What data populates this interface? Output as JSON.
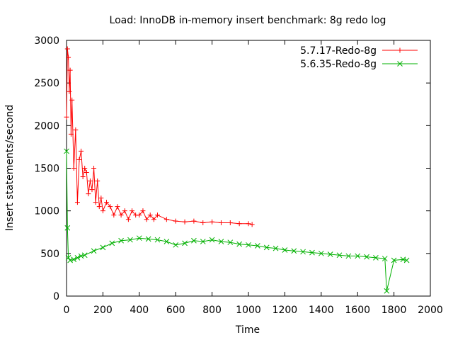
{
  "chart_data": {
    "type": "line",
    "title": "Load: InnoDB in-memory insert benchmark: 8g redo log",
    "xlabel": "Time",
    "ylabel": "Insert statements/second",
    "xlim": [
      0,
      2000
    ],
    "ylim": [
      0,
      3000
    ],
    "xticks": [
      0,
      200,
      400,
      600,
      800,
      1000,
      1200,
      1400,
      1600,
      1800,
      2000
    ],
    "yticks": [
      0,
      500,
      1000,
      1500,
      2000,
      2500,
      3000
    ],
    "grid": false,
    "legend_position": "top-right",
    "series": [
      {
        "name": "5.7.17-Redo-8g",
        "color": "#ff0000",
        "marker": "plus",
        "x": [
          0,
          5,
          10,
          15,
          20,
          25,
          30,
          40,
          50,
          60,
          70,
          80,
          90,
          100,
          110,
          120,
          130,
          140,
          150,
          160,
          170,
          180,
          190,
          200,
          220,
          240,
          260,
          280,
          300,
          320,
          340,
          360,
          380,
          400,
          420,
          440,
          460,
          480,
          500,
          550,
          600,
          650,
          700,
          750,
          800,
          850,
          900,
          950,
          1000,
          1020
        ],
        "y": [
          2100,
          2900,
          2800,
          2400,
          2650,
          1900,
          2300,
          1500,
          1950,
          1100,
          1600,
          1700,
          1400,
          1500,
          1450,
          1200,
          1350,
          1250,
          1500,
          1100,
          1350,
          1050,
          1150,
          1000,
          1100,
          1050,
          950,
          1050,
          950,
          1000,
          900,
          1000,
          950,
          950,
          1000,
          900,
          950,
          900,
          950,
          900,
          880,
          870,
          880,
          860,
          870,
          860,
          860,
          850,
          850,
          840
        ]
      },
      {
        "name": "5.6.35-Redo-8g",
        "color": "#00b000",
        "marker": "cross",
        "x": [
          0,
          5,
          10,
          20,
          40,
          60,
          80,
          100,
          150,
          200,
          250,
          300,
          350,
          400,
          450,
          500,
          550,
          600,
          650,
          700,
          750,
          800,
          850,
          900,
          950,
          1000,
          1050,
          1100,
          1150,
          1200,
          1250,
          1300,
          1350,
          1400,
          1450,
          1500,
          1550,
          1600,
          1650,
          1700,
          1750,
          1760,
          1800,
          1850,
          1870
        ],
        "y": [
          1700,
          800,
          450,
          420,
          430,
          450,
          470,
          480,
          530,
          570,
          620,
          650,
          660,
          680,
          670,
          660,
          640,
          600,
          620,
          650,
          640,
          660,
          640,
          630,
          610,
          600,
          590,
          570,
          560,
          540,
          530,
          520,
          510,
          500,
          490,
          480,
          470,
          470,
          460,
          450,
          440,
          60,
          420,
          430,
          420
        ]
      }
    ]
  }
}
